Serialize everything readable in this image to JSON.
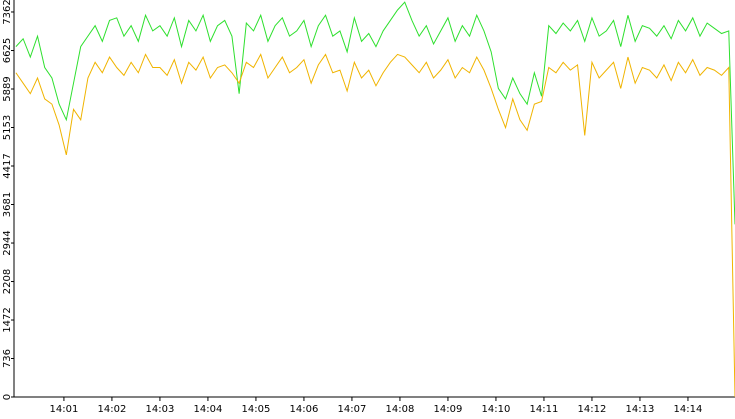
{
  "chart_data": {
    "type": "line",
    "xlim": [
      -0.04,
      14.98
    ],
    "xticks": [
      {
        "value": 1,
        "label": "14:01"
      },
      {
        "value": 2,
        "label": "14:02"
      },
      {
        "value": 3,
        "label": "14:03"
      },
      {
        "value": 4,
        "label": "14:04"
      },
      {
        "value": 5,
        "label": "14:05"
      },
      {
        "value": 6,
        "label": "14:06"
      },
      {
        "value": 7,
        "label": "14:07"
      },
      {
        "value": 8,
        "label": "14:08"
      },
      {
        "value": 9,
        "label": "14:09"
      },
      {
        "value": 10,
        "label": "14:10"
      },
      {
        "value": 11,
        "label": "14:11"
      },
      {
        "value": 12,
        "label": "14:12"
      },
      {
        "value": 13,
        "label": "14:13"
      },
      {
        "value": 14,
        "label": "14:14"
      }
    ],
    "ylim": [
      0,
      7591
    ],
    "yticks": [
      0,
      736,
      1472,
      2208,
      2944,
      3681,
      4417,
      5153,
      5889,
      6625,
      7362
    ],
    "x": [
      0,
      0.15,
      0.3,
      0.45,
      0.6,
      0.75,
      0.9,
      1.05,
      1.2,
      1.35,
      1.5,
      1.65,
      1.8,
      1.95,
      2.1,
      2.25,
      2.4,
      2.55,
      2.7,
      2.85,
      3,
      3.15,
      3.3,
      3.45,
      3.6,
      3.75,
      3.9,
      4.05,
      4.2,
      4.35,
      4.5,
      4.65,
      4.8,
      4.95,
      5.1,
      5.25,
      5.4,
      5.55,
      5.7,
      5.85,
      6,
      6.15,
      6.3,
      6.45,
      6.6,
      6.75,
      6.9,
      7.05,
      7.2,
      7.35,
      7.5,
      7.65,
      7.8,
      7.95,
      8.1,
      8.25,
      8.4,
      8.55,
      8.7,
      8.85,
      9,
      9.15,
      9.3,
      9.45,
      9.6,
      9.75,
      9.9,
      10.05,
      10.2,
      10.35,
      10.5,
      10.65,
      10.8,
      10.95,
      11.1,
      11.25,
      11.4,
      11.55,
      11.7,
      11.85,
      12,
      12.15,
      12.3,
      12.45,
      12.6,
      12.75,
      12.9,
      13.05,
      13.2,
      13.35,
      13.5,
      13.65,
      13.8,
      13.95,
      14.1,
      14.25,
      14.4,
      14.55,
      14.7,
      14.85,
      14.98
    ],
    "series": [
      {
        "color": "#2ee02e",
        "values": [
          6700,
          6850,
          6500,
          6900,
          6300,
          6100,
          5600,
          5300,
          6000,
          6700,
          6900,
          7100,
          6800,
          7200,
          7250,
          6900,
          7100,
          6800,
          7300,
          7000,
          7100,
          6900,
          7250,
          6700,
          7200,
          7000,
          7300,
          6800,
          7100,
          7200,
          6900,
          5800,
          7150,
          7000,
          7300,
          6800,
          7100,
          7250,
          6900,
          7000,
          7200,
          6700,
          7100,
          7300,
          6900,
          7000,
          6600,
          7250,
          6800,
          6950,
          6700,
          7000,
          7200,
          7400,
          7550,
          7200,
          6900,
          7100,
          6750,
          7000,
          7250,
          6800,
          7100,
          6900,
          7300,
          7000,
          6600,
          5900,
          5700,
          6100,
          5800,
          5600,
          6200,
          5750,
          7100,
          6950,
          7150,
          7000,
          7200,
          6800,
          7250,
          6900,
          7000,
          7200,
          6700,
          7300,
          6800,
          7100,
          7050,
          6900,
          7100,
          6850,
          7200,
          7000,
          7250,
          6900,
          7150,
          7050,
          6950,
          7000,
          3300
        ]
      },
      {
        "color": "#f0b400",
        "values": [
          6200,
          6000,
          5800,
          6100,
          5700,
          5600,
          5200,
          4630,
          5500,
          5300,
          6100,
          6400,
          6200,
          6500,
          6300,
          6150,
          6400,
          6200,
          6550,
          6300,
          6300,
          6150,
          6450,
          6000,
          6400,
          6250,
          6500,
          6100,
          6300,
          6350,
          6200,
          6000,
          6400,
          6300,
          6550,
          6100,
          6300,
          6500,
          6200,
          6300,
          6450,
          6000,
          6350,
          6550,
          6200,
          6250,
          5850,
          6400,
          6100,
          6250,
          5950,
          6200,
          6400,
          6550,
          6500,
          6350,
          6200,
          6400,
          6100,
          6250,
          6450,
          6100,
          6300,
          6200,
          6500,
          6250,
          5900,
          5500,
          5150,
          5700,
          5300,
          5100,
          5600,
          5650,
          6300,
          6200,
          6400,
          6250,
          6350,
          5000,
          6400,
          6100,
          6250,
          6400,
          5900,
          6500,
          6000,
          6300,
          6250,
          6100,
          6350,
          6050,
          6400,
          6200,
          6450,
          6150,
          6300,
          6250,
          6150,
          6300,
          0
        ]
      }
    ]
  }
}
